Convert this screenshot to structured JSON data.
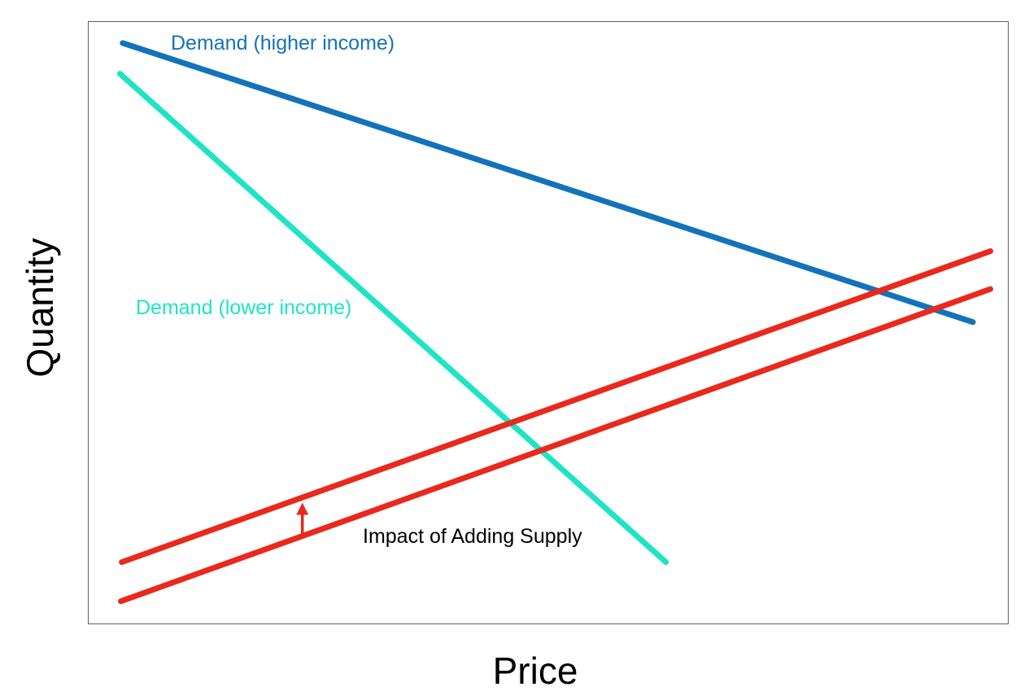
{
  "labels": {
    "xlabel": "Price",
    "ylabel": "Quantity",
    "demand_higher": "Demand (higher income)",
    "demand_lower": "Demand (lower income)",
    "impact": "Impact of Adding Supply"
  },
  "colors": {
    "demand_higher": "#1373BA",
    "demand_lower": "#1EE4C6",
    "supply": "#E9291C",
    "annotation_text": "#000000",
    "axis_text": "#000000",
    "frame": "#616161",
    "background": "#FFFFFF"
  },
  "chart_data": {
    "type": "line",
    "title": "",
    "xlabel": "Price",
    "ylabel": "Quantity",
    "x_ticks": [],
    "y_ticks": [],
    "grid": false,
    "frame": true,
    "legend": "inline-labels",
    "axis_note": "conceptual diagram, no numeric scale; coordinates normalized 0-1 (x: left to right, y: bottom to top)",
    "series": [
      {
        "id": "demand-higher-income",
        "label": "Demand (higher income)",
        "color": "#1373BA",
        "stroke_width": 7,
        "x": [
          0.037,
          0.962
        ],
        "y": [
          0.965,
          0.501
        ]
      },
      {
        "id": "demand-lower-income",
        "label": "Demand (lower income)",
        "color": "#1EE4C6",
        "stroke_width": 7,
        "x": [
          0.034,
          0.628
        ],
        "y": [
          0.914,
          0.102
        ]
      },
      {
        "id": "supply-shifted-up",
        "label": "",
        "color": "#E9291C",
        "stroke_width": 7,
        "x": [
          0.036,
          0.981
        ],
        "y": [
          0.102,
          0.619
        ]
      },
      {
        "id": "supply-original",
        "label": "",
        "color": "#E9291C",
        "stroke_width": 7,
        "x": [
          0.035,
          0.981
        ],
        "y": [
          0.037,
          0.556
        ]
      }
    ],
    "annotations": [
      {
        "id": "impact-text",
        "type": "text",
        "text": "Impact of Adding Supply",
        "color": "#000000",
        "x": 0.33,
        "y": 0.13
      },
      {
        "id": "supply-shift-arrow",
        "type": "arrow",
        "color": "#E9291C",
        "direction": "up",
        "x": 0.2325,
        "y_from": 0.147,
        "y_to": 0.201,
        "stroke_width": 3.5
      }
    ]
  }
}
